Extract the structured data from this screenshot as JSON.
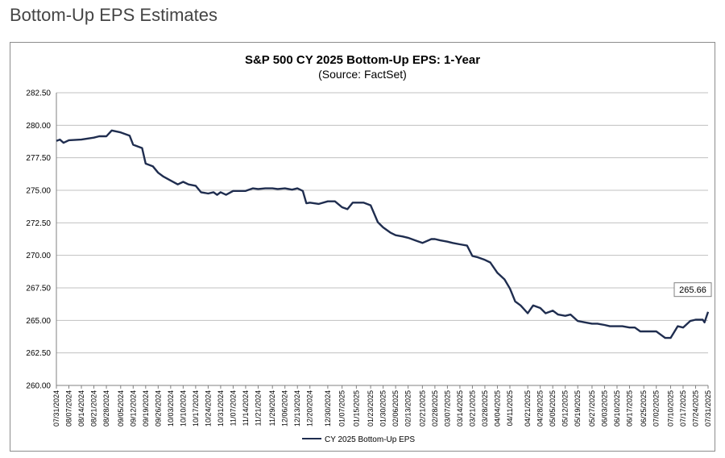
{
  "page": {
    "title": "Bottom-Up EPS Estimates"
  },
  "chart_data": {
    "type": "line",
    "title": "S&P 500 CY 2025 Bottom-Up EPS: 1-Year",
    "subtitle": "(Source: FactSet)",
    "ylim": [
      260,
      282.5
    ],
    "yticks": [
      "260.00",
      "262.50",
      "265.00",
      "267.50",
      "270.00",
      "272.50",
      "275.00",
      "277.50",
      "280.00",
      "282.50"
    ],
    "grid": true,
    "legend_position": "bottom-center",
    "line_color": "#1f2d4f",
    "x_tick_labels": [
      "07/31/2024",
      "08/07/2024",
      "08/14/2024",
      "08/21/2024",
      "08/28/2024",
      "09/05/2024",
      "09/12/2024",
      "09/19/2024",
      "09/26/2024",
      "10/03/2024",
      "10/10/2024",
      "10/17/2024",
      "10/24/2024",
      "10/31/2024",
      "11/07/2024",
      "11/14/2024",
      "11/21/2024",
      "11/29/2024",
      "12/06/2024",
      "12/13/2024",
      "12/20/2024",
      "12/30/2024",
      "01/07/2025",
      "01/15/2025",
      "01/23/2025",
      "01/30/2025",
      "02/06/2025",
      "02/13/2025",
      "02/21/2025",
      "02/28/2025",
      "03/07/2025",
      "03/14/2025",
      "03/21/2025",
      "03/28/2025",
      "04/04/2025",
      "04/11/2025",
      "04/21/2025",
      "04/28/2025",
      "05/05/2025",
      "05/12/2025",
      "05/19/2025",
      "05/27/2025",
      "06/03/2025",
      "06/10/2025",
      "06/17/2025",
      "06/25/2025",
      "07/02/2025",
      "07/10/2025",
      "07/17/2025",
      "07/24/2025",
      "07/31/2025"
    ],
    "series": [
      {
        "name": "CY 2025 Bottom-Up EPS",
        "x": [
          "07/31/2024",
          "08/02/2024",
          "08/04/2024",
          "08/07/2024",
          "08/14/2024",
          "08/21/2024",
          "08/24/2024",
          "08/28/2024",
          "08/31/2024",
          "09/05/2024",
          "09/10/2024",
          "09/12/2024",
          "09/15/2024",
          "09/17/2024",
          "09/19/2024",
          "09/23/2024",
          "09/26/2024",
          "09/29/2024",
          "10/03/2024",
          "10/07/2024",
          "10/10/2024",
          "10/13/2024",
          "10/17/2024",
          "10/20/2024",
          "10/24/2024",
          "10/27/2024",
          "10/29/2024",
          "10/31/2024",
          "11/03/2024",
          "11/07/2024",
          "11/10/2024",
          "11/14/2024",
          "11/18/2024",
          "11/21/2024",
          "11/25/2024",
          "11/29/2024",
          "12/02/2024",
          "12/06/2024",
          "12/10/2024",
          "12/13/2024",
          "12/16/2024",
          "12/18/2024",
          "12/20/2024",
          "12/25/2024",
          "12/30/2024",
          "01/03/2025",
          "01/07/2025",
          "01/10/2025",
          "01/13/2025",
          "01/15/2025",
          "01/19/2025",
          "01/23/2025",
          "01/27/2025",
          "01/30/2025",
          "02/03/2025",
          "02/06/2025",
          "02/10/2025",
          "02/13/2025",
          "02/17/2025",
          "02/21/2025",
          "02/26/2025",
          "02/28/2025",
          "03/03/2025",
          "03/07/2025",
          "03/10/2025",
          "03/14/2025",
          "03/18/2025",
          "03/21/2025",
          "03/24/2025",
          "03/28/2025",
          "03/31/2025",
          "04/04/2025",
          "04/08/2025",
          "04/11/2025",
          "04/14/2025",
          "04/17/2025",
          "04/21/2025",
          "04/24/2025",
          "04/28/2025",
          "05/01/2025",
          "05/05/2025",
          "05/08/2025",
          "05/12/2025",
          "05/15/2025",
          "05/19/2025",
          "05/23/2025",
          "05/27/2025",
          "05/30/2025",
          "06/03/2025",
          "06/06/2025",
          "06/10/2025",
          "06/13/2025",
          "06/17/2025",
          "06/20/2025",
          "06/23/2025",
          "06/25/2025",
          "06/28/2025",
          "07/02/2025",
          "07/04/2025",
          "07/07/2025",
          "07/10/2025",
          "07/14/2025",
          "07/17/2025",
          "07/21/2025",
          "07/24/2025",
          "07/28/2025",
          "07/29/2025",
          "07/31/2025"
        ],
        "values": [
          278.8,
          278.9,
          278.65,
          278.85,
          278.9,
          279.05,
          279.15,
          279.15,
          279.6,
          279.45,
          279.2,
          278.5,
          278.35,
          278.25,
          277.05,
          276.85,
          276.35,
          276.05,
          275.75,
          275.45,
          275.65,
          275.45,
          275.35,
          274.85,
          274.75,
          274.85,
          274.65,
          274.85,
          274.65,
          274.95,
          274.95,
          274.95,
          275.15,
          275.1,
          275.15,
          275.15,
          275.1,
          275.15,
          275.05,
          275.15,
          274.95,
          274.0,
          274.05,
          273.95,
          274.15,
          274.15,
          273.7,
          273.55,
          274.05,
          274.05,
          274.05,
          273.85,
          272.55,
          272.15,
          271.75,
          271.55,
          271.45,
          271.35,
          271.15,
          270.95,
          271.25,
          271.25,
          271.15,
          271.05,
          270.95,
          270.85,
          270.75,
          269.95,
          269.85,
          269.65,
          269.45,
          268.65,
          268.15,
          267.45,
          266.45,
          266.15,
          265.55,
          266.15,
          265.95,
          265.55,
          265.75,
          265.45,
          265.35,
          265.45,
          264.95,
          264.85,
          264.75,
          264.75,
          264.65,
          264.55,
          264.55,
          264.55,
          264.45,
          264.45,
          264.15,
          264.15,
          264.15,
          264.15,
          263.95,
          263.65,
          263.65,
          264.55,
          264.45,
          264.95,
          265.05,
          265.05,
          264.85,
          265.66
        ]
      }
    ],
    "annotations": [
      {
        "x": "07/31/2025",
        "y": 265.66,
        "label": "265.66"
      }
    ]
  }
}
